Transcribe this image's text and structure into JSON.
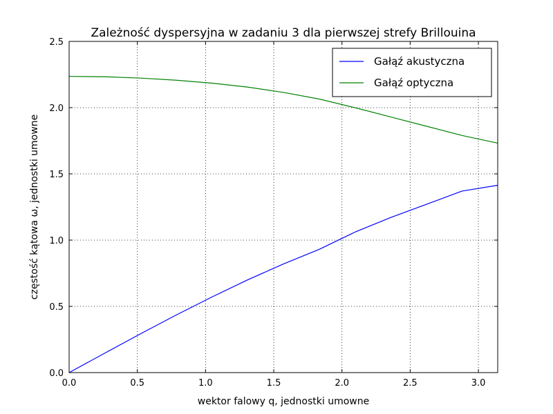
{
  "chart_data": {
    "type": "line",
    "title": "Zależność dyspersyjna w zadaniu 3 dla pierwszej strefy Brillouina",
    "xlabel": "wektor falowy q, jednostki umowne",
    "ylabel": "częstość kątowa ω, jednostki umowne",
    "xlim": [
      0,
      3.1416
    ],
    "ylim": [
      0,
      2.5
    ],
    "x_ticks": [
      "0.0",
      "0.5",
      "1.0",
      "1.5",
      "2.0",
      "2.5",
      "3.0"
    ],
    "y_ticks": [
      "0.0",
      "0.5",
      "1.0",
      "1.5",
      "2.0",
      "2.5"
    ],
    "grid": true,
    "legend_position": "top-right",
    "x": [
      0.0,
      0.2618,
      0.5236,
      0.7854,
      1.0472,
      1.309,
      1.5708,
      1.8326,
      2.0944,
      2.3562,
      2.618,
      2.8798,
      3.1416
    ],
    "series": [
      {
        "name": "Gałąź akustyczna",
        "color": "#0000ff",
        "values": [
          0.0,
          0.147,
          0.293,
          0.435,
          0.571,
          0.7,
          0.82,
          0.93,
          1.06,
          1.17,
          1.27,
          1.37,
          1.414
        ]
      },
      {
        "name": "Gałąź optyczna",
        "color": "#008000",
        "values": [
          2.236,
          2.233,
          2.223,
          2.207,
          2.185,
          2.155,
          2.115,
          2.065,
          2.0,
          1.93,
          1.86,
          1.79,
          1.732
        ]
      }
    ]
  }
}
